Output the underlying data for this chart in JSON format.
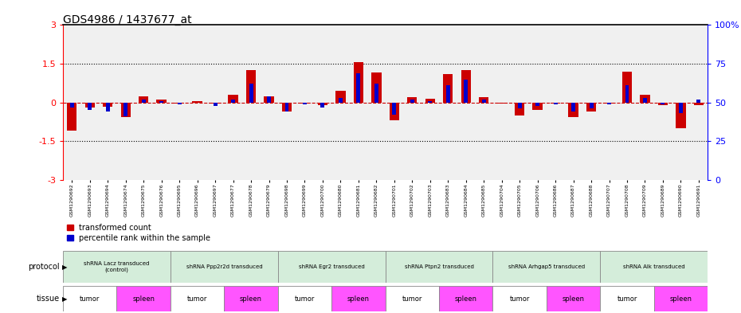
{
  "title": "GDS4986 / 1437677_at",
  "ylim_left": [
    -3,
    3
  ],
  "ylim_right": [
    0,
    100
  ],
  "yticks_left": [
    -3,
    -1.5,
    0,
    1.5,
    3
  ],
  "yticks_right": [
    0,
    25,
    50,
    75,
    100
  ],
  "ytick_labels_right": [
    "0",
    "25",
    "50",
    "75",
    "100%"
  ],
  "sample_ids": [
    "GSM1290692",
    "GSM1290693",
    "GSM1290694",
    "GSM1290674",
    "GSM1290675",
    "GSM1290676",
    "GSM1290695",
    "GSM1290696",
    "GSM1290697",
    "GSM1290677",
    "GSM1290678",
    "GSM1290679",
    "GSM1290698",
    "GSM1290699",
    "GSM1290700",
    "GSM1290680",
    "GSM1290681",
    "GSM1290682",
    "GSM1290701",
    "GSM1290702",
    "GSM1290703",
    "GSM1290683",
    "GSM1290684",
    "GSM1290685",
    "GSM1290704",
    "GSM1290705",
    "GSM1290706",
    "GSM1290686",
    "GSM1290687",
    "GSM1290688",
    "GSM1290707",
    "GSM1290708",
    "GSM1290709",
    "GSM1290689",
    "GSM1290690",
    "GSM1290691"
  ],
  "red_values": [
    -1.1,
    -0.2,
    -0.15,
    -0.55,
    0.25,
    0.1,
    -0.05,
    0.05,
    -0.05,
    0.3,
    1.25,
    0.25,
    -0.35,
    -0.05,
    -0.1,
    0.45,
    1.55,
    1.15,
    -0.7,
    0.2,
    0.15,
    1.1,
    1.25,
    0.2,
    -0.05,
    -0.5,
    -0.3,
    -0.05,
    -0.55,
    -0.35,
    -0.05,
    1.2,
    0.3,
    -0.1,
    -1.0,
    -0.1
  ],
  "blue_values_pct": [
    47,
    45,
    44,
    41,
    52,
    51,
    49,
    50,
    48,
    52,
    62,
    54,
    44,
    49,
    47,
    53,
    69,
    62,
    42,
    52,
    51,
    61,
    65,
    52,
    50,
    46,
    48,
    49,
    44,
    46,
    49,
    61,
    53,
    49,
    43,
    52
  ],
  "protocols": [
    {
      "label": "shRNA Lacz transduced\n(control)",
      "start": 0,
      "end": 5,
      "color": "#d4edda"
    },
    {
      "label": "shRNA Ppp2r2d transduced",
      "start": 6,
      "end": 11,
      "color": "#d4edda"
    },
    {
      "label": "shRNA Egr2 transduced",
      "start": 12,
      "end": 17,
      "color": "#d4edda"
    },
    {
      "label": "shRNA Ptpn2 transduced",
      "start": 18,
      "end": 23,
      "color": "#d4edda"
    },
    {
      "label": "shRNA Arhgap5 transduced",
      "start": 24,
      "end": 29,
      "color": "#d4edda"
    },
    {
      "label": "shRNA Alk transduced",
      "start": 30,
      "end": 35,
      "color": "#d4edda"
    }
  ],
  "tissues": [
    {
      "label": "tumor",
      "start": 0,
      "end": 2,
      "color": "#ffffff"
    },
    {
      "label": "spleen",
      "start": 3,
      "end": 5,
      "color": "#ff55ff"
    },
    {
      "label": "tumor",
      "start": 6,
      "end": 8,
      "color": "#ffffff"
    },
    {
      "label": "spleen",
      "start": 9,
      "end": 11,
      "color": "#ff55ff"
    },
    {
      "label": "tumor",
      "start": 12,
      "end": 14,
      "color": "#ffffff"
    },
    {
      "label": "spleen",
      "start": 15,
      "end": 17,
      "color": "#ff55ff"
    },
    {
      "label": "tumor",
      "start": 18,
      "end": 20,
      "color": "#ffffff"
    },
    {
      "label": "spleen",
      "start": 21,
      "end": 23,
      "color": "#ff55ff"
    },
    {
      "label": "tumor",
      "start": 24,
      "end": 26,
      "color": "#ffffff"
    },
    {
      "label": "spleen",
      "start": 27,
      "end": 29,
      "color": "#ff55ff"
    },
    {
      "label": "tumor",
      "start": 30,
      "end": 32,
      "color": "#ffffff"
    },
    {
      "label": "spleen",
      "start": 33,
      "end": 35,
      "color": "#ff55ff"
    }
  ],
  "red_color": "#cc0000",
  "blue_color": "#0000cc",
  "legend_items": [
    "transformed count",
    "percentile rank within the sample"
  ],
  "bg_color": "#f0f0f0"
}
